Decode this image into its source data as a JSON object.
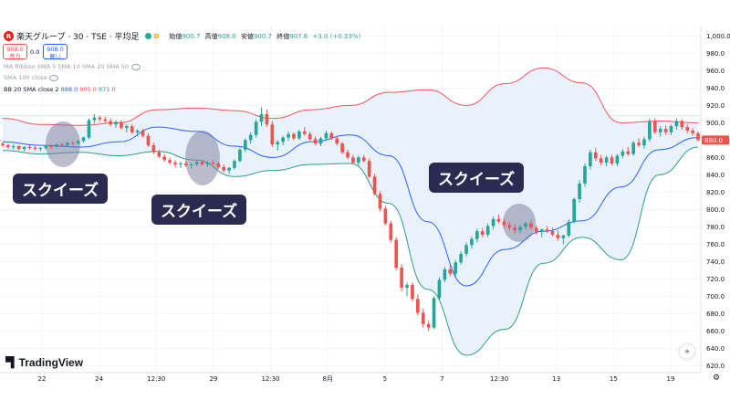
{
  "header": {
    "symbol_title": "楽天グループ · 30 · TSE · 平均足",
    "badge": "D",
    "ohlc": [
      {
        "label": "始値",
        "value": "900.7"
      },
      {
        "label": "高値",
        "value": "908.0"
      },
      {
        "label": "安値",
        "value": "900.7"
      },
      {
        "label": "終値",
        "value": "907.6"
      },
      {
        "label": "",
        "value": "+3.0 (+0.33%)"
      }
    ]
  },
  "trade": {
    "sell_price": "908.0",
    "sell_label": "売り",
    "spread": "0.0",
    "buy_price": "908.0",
    "buy_label": "買い"
  },
  "indicators": {
    "ma_ribbon": "MA Ribbon SMA 5 SMA 10 SMA 20 SMA 50",
    "sma": "SMA 100 close",
    "bb_label": "BB 20 SMA close 2",
    "bb_values": [
      "888.0",
      "905.0",
      "871.0"
    ]
  },
  "brand": "TradingView",
  "callouts": [
    "スクイーズ",
    "スクイーズ",
    "スクイーズ"
  ],
  "colors": {
    "up": "#26a69a",
    "down": "#ef5350",
    "bb_upper": "#f2545b",
    "bb_basis": "#2962ff",
    "bb_lower": "#2e9e88",
    "bb_fill": "#e9f2fb",
    "callout_bg": "#2b2b52",
    "highlight": "#7a7a9a"
  },
  "chart_data": {
    "type": "candlestick",
    "y_axis_ticks": [
      620,
      640,
      660,
      680,
      700,
      720,
      740,
      760,
      780,
      800,
      820,
      840,
      860,
      880,
      900,
      920,
      940,
      960,
      980,
      1000
    ],
    "y_axis_tick_labels": [
      "620.0",
      "640.0",
      "660.0",
      "680.0",
      "700.0",
      "720.0",
      "740.0",
      "760.0",
      "780.0",
      "800.0",
      "820.0",
      "840.0",
      "860.0",
      "880.0",
      "900.0",
      "920.0",
      "940.0",
      "960.0",
      "980.0",
      "1,000.0"
    ],
    "ylim": [
      612,
      1012
    ],
    "x_axis_labels": [
      "22",
      "24",
      "12:30",
      "29",
      "12:30",
      "8月",
      "5",
      "7",
      "12:30",
      "13",
      "15",
      "19"
    ],
    "last_price": "880.0",
    "highlighted_price": "908.0",
    "bars": [
      [
        876,
        878,
        872,
        874
      ],
      [
        874,
        876,
        870,
        872
      ],
      [
        872,
        875,
        869,
        873
      ],
      [
        873,
        874,
        868,
        870
      ],
      [
        870,
        873,
        867,
        872
      ],
      [
        872,
        874,
        869,
        871
      ],
      [
        871,
        873,
        868,
        870
      ],
      [
        870,
        872,
        867,
        871
      ],
      [
        871,
        874,
        869,
        873
      ],
      [
        873,
        875,
        870,
        872
      ],
      [
        872,
        876,
        871,
        875
      ],
      [
        875,
        877,
        872,
        874
      ],
      [
        874,
        878,
        873,
        877
      ],
      [
        877,
        879,
        874,
        876
      ],
      [
        876,
        880,
        875,
        879
      ],
      [
        879,
        884,
        877,
        883
      ],
      [
        883,
        905,
        881,
        903
      ],
      [
        903,
        910,
        899,
        906
      ],
      [
        906,
        908,
        901,
        904
      ],
      [
        904,
        907,
        899,
        902
      ],
      [
        902,
        905,
        896,
        898
      ],
      [
        898,
        903,
        894,
        901
      ],
      [
        901,
        903,
        892,
        894
      ],
      [
        894,
        898,
        889,
        896
      ],
      [
        896,
        898,
        887,
        889
      ],
      [
        889,
        893,
        884,
        891
      ],
      [
        891,
        893,
        883,
        885
      ],
      [
        885,
        888,
        872,
        874
      ],
      [
        874,
        877,
        864,
        866
      ],
      [
        866,
        869,
        859,
        861
      ],
      [
        861,
        864,
        855,
        857
      ],
      [
        857,
        860,
        852,
        854
      ],
      [
        854,
        857,
        849,
        852
      ],
      [
        852,
        855,
        848,
        853
      ],
      [
        853,
        856,
        849,
        851
      ],
      [
        851,
        854,
        847,
        852
      ],
      [
        852,
        856,
        850,
        855
      ],
      [
        855,
        857,
        850,
        852
      ],
      [
        852,
        856,
        849,
        854
      ],
      [
        854,
        857,
        851,
        853
      ],
      [
        853,
        855,
        847,
        849
      ],
      [
        849,
        852,
        843,
        845
      ],
      [
        845,
        849,
        841,
        848
      ],
      [
        848,
        858,
        846,
        856
      ],
      [
        856,
        871,
        854,
        869
      ],
      [
        869,
        882,
        866,
        880
      ],
      [
        880,
        889,
        876,
        886
      ],
      [
        886,
        904,
        883,
        901
      ],
      [
        901,
        918,
        896,
        910
      ],
      [
        910,
        915,
        895,
        898
      ],
      [
        898,
        902,
        872,
        875
      ],
      [
        875,
        880,
        868,
        878
      ],
      [
        878,
        885,
        874,
        883
      ],
      [
        883,
        890,
        879,
        887
      ],
      [
        887,
        889,
        880,
        882
      ],
      [
        882,
        892,
        880,
        890
      ],
      [
        890,
        895,
        885,
        887
      ],
      [
        887,
        890,
        879,
        881
      ],
      [
        881,
        884,
        874,
        876
      ],
      [
        876,
        884,
        873,
        882
      ],
      [
        882,
        891,
        879,
        888
      ],
      [
        888,
        890,
        880,
        882
      ],
      [
        882,
        885,
        874,
        876
      ],
      [
        876,
        878,
        864,
        866
      ],
      [
        866,
        869,
        858,
        860
      ],
      [
        860,
        863,
        852,
        854
      ],
      [
        854,
        862,
        851,
        860
      ],
      [
        860,
        863,
        854,
        856
      ],
      [
        856,
        859,
        836,
        838
      ],
      [
        838,
        841,
        816,
        818
      ],
      [
        818,
        821,
        798,
        801
      ],
      [
        801,
        804,
        782,
        784
      ],
      [
        784,
        787,
        762,
        765
      ],
      [
        765,
        768,
        730,
        733
      ],
      [
        733,
        737,
        706,
        710
      ],
      [
        710,
        716,
        700,
        713
      ],
      [
        713,
        716,
        694,
        697
      ],
      [
        697,
        702,
        678,
        681
      ],
      [
        681,
        686,
        664,
        668
      ],
      [
        668,
        672,
        660,
        664
      ],
      [
        664,
        700,
        662,
        698
      ],
      [
        698,
        722,
        695,
        719
      ],
      [
        719,
        734,
        716,
        731
      ],
      [
        731,
        736,
        723,
        726
      ],
      [
        726,
        742,
        723,
        739
      ],
      [
        739,
        752,
        736,
        749
      ],
      [
        749,
        762,
        746,
        759
      ],
      [
        759,
        769,
        755,
        766
      ],
      [
        766,
        778,
        762,
        775
      ],
      [
        775,
        779,
        768,
        771
      ],
      [
        771,
        784,
        768,
        781
      ],
      [
        781,
        792,
        777,
        789
      ],
      [
        789,
        794,
        784,
        786
      ],
      [
        786,
        789,
        779,
        782
      ],
      [
        782,
        786,
        776,
        779
      ],
      [
        779,
        783,
        772,
        776
      ],
      [
        776,
        782,
        773,
        780
      ],
      [
        780,
        786,
        777,
        784
      ],
      [
        784,
        788,
        777,
        779
      ],
      [
        779,
        782,
        771,
        774
      ],
      [
        774,
        778,
        768,
        777
      ],
      [
        777,
        781,
        773,
        775
      ],
      [
        775,
        779,
        769,
        771
      ],
      [
        771,
        776,
        764,
        767
      ],
      [
        767,
        771,
        760,
        770
      ],
      [
        770,
        789,
        768,
        786
      ],
      [
        786,
        814,
        784,
        812
      ],
      [
        812,
        834,
        808,
        830
      ],
      [
        830,
        853,
        826,
        850
      ],
      [
        850,
        869,
        846,
        866
      ],
      [
        866,
        871,
        856,
        859
      ],
      [
        859,
        863,
        851,
        854
      ],
      [
        854,
        862,
        850,
        860
      ],
      [
        860,
        863,
        851,
        853
      ],
      [
        853,
        864,
        850,
        862
      ],
      [
        862,
        870,
        859,
        867
      ],
      [
        867,
        872,
        862,
        864
      ],
      [
        864,
        879,
        862,
        877
      ],
      [
        877,
        882,
        872,
        874
      ],
      [
        874,
        884,
        870,
        881
      ],
      [
        881,
        905,
        878,
        902
      ],
      [
        902,
        905,
        887,
        889
      ],
      [
        889,
        896,
        884,
        893
      ],
      [
        893,
        897,
        886,
        889
      ],
      [
        889,
        898,
        886,
        896
      ],
      [
        896,
        905,
        892,
        902
      ],
      [
        902,
        904,
        892,
        895
      ],
      [
        895,
        898,
        888,
        891
      ],
      [
        891,
        894,
        885,
        888
      ],
      [
        888,
        890,
        879,
        880
      ]
    ],
    "bollinger_bands": {
      "upper": [
        905,
        898,
        897,
        900,
        915,
        917,
        914,
        905,
        915,
        920,
        935,
        938,
        920,
        945,
        963,
        946,
        900,
        902,
        900
      ],
      "basis": [
        878,
        874,
        872,
        878,
        895,
        890,
        873,
        860,
        878,
        886,
        862,
        786,
        712,
        754,
        775,
        787,
        826,
        869,
        883
      ],
      "lower": [
        868,
        864,
        866,
        862,
        867,
        857,
        838,
        845,
        852,
        853,
        807,
        708,
        632,
        662,
        738,
        768,
        742,
        840,
        872
      ]
    }
  }
}
